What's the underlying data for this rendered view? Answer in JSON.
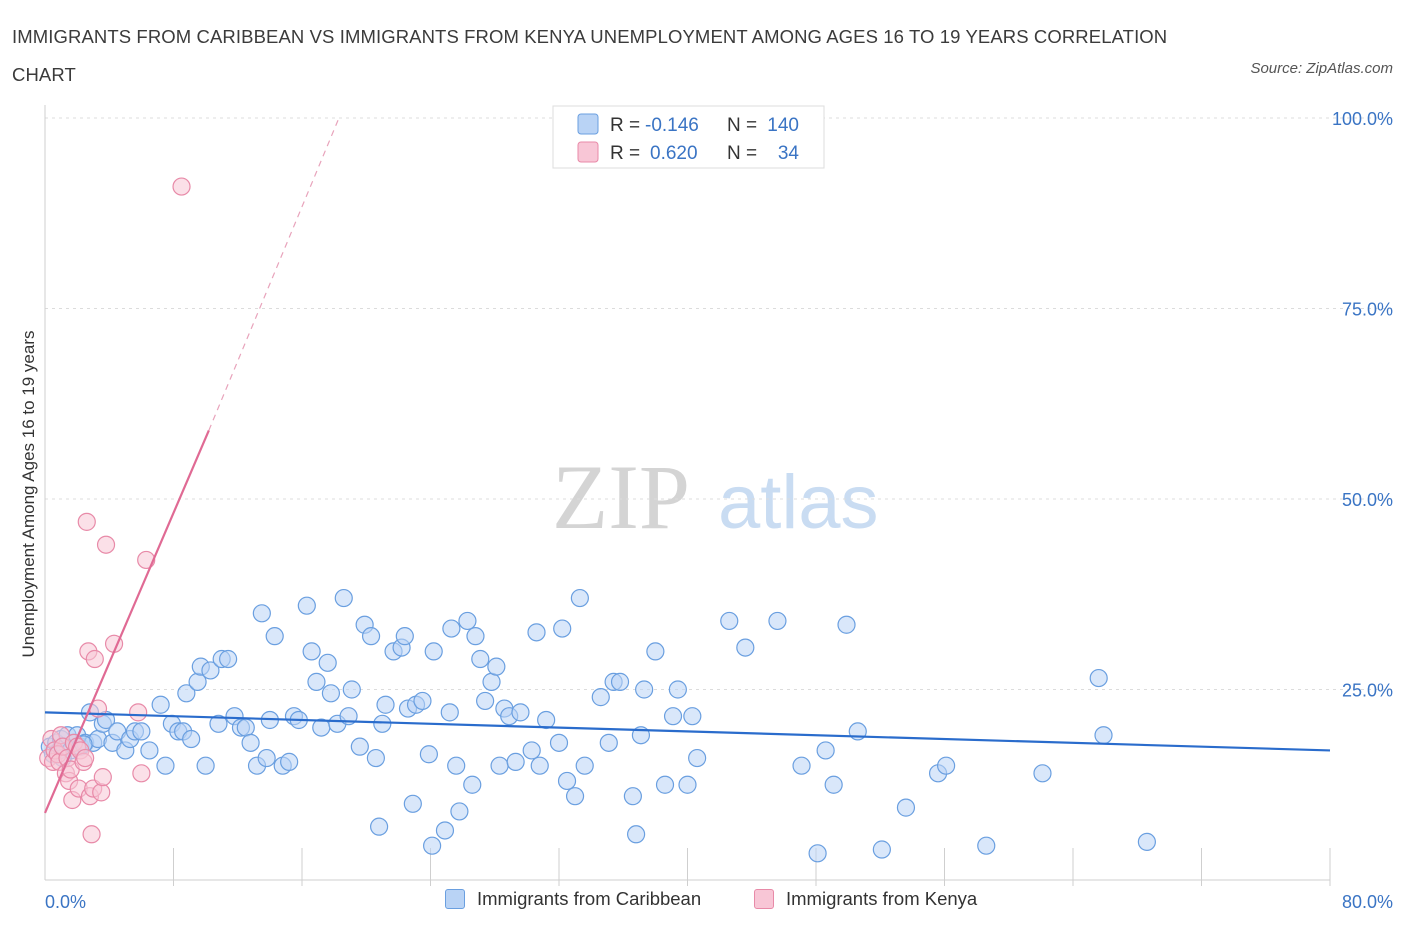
{
  "title": "IMMIGRANTS FROM CARIBBEAN VS IMMIGRANTS FROM KENYA UNEMPLOYMENT AMONG AGES 16 TO 19 YEARS CORRELATION CHART",
  "source": "Source: ZipAtlas.com",
  "watermark": {
    "zip": "ZIP",
    "atlas": "atlas"
  },
  "legend": {
    "items": [
      {
        "r_label": "R =",
        "r_value": "-0.146",
        "n_label": "N =",
        "n_value": "140",
        "fill": "#b9d3f5",
        "stroke": "#6a9fe0"
      },
      {
        "r_label": "R =",
        "r_value": "0.620",
        "n_label": "N =",
        "n_value": "34",
        "fill": "#f8c6d6",
        "stroke": "#e88aa8"
      }
    ]
  },
  "bottom_legend": {
    "caribbean": "Immigrants from Caribbean",
    "kenya": "Immigrants from Kenya"
  },
  "chart_data": {
    "type": "scatter",
    "title": "IMMIGRANTS FROM CARIBBEAN VS IMMIGRANTS FROM KENYA UNEMPLOYMENT AMONG AGES 16 TO 19 YEARS CORRELATION CHART",
    "xlabel": "",
    "ylabel": "Unemployment Among Ages 16 to 19 years",
    "xlim": [
      0,
      80
    ],
    "ylim": [
      0,
      100
    ],
    "x_tick_labels": [
      "0.0%",
      "80.0%"
    ],
    "y_ticks": [
      25,
      50,
      75,
      100
    ],
    "y_tick_labels": [
      "25.0%",
      "50.0%",
      "75.0%",
      "100.0%"
    ],
    "grid": true,
    "colors": {
      "caribbean": "#6a9fe0",
      "caribbean_fill": "#b9d3f5",
      "kenya": "#e88aa8",
      "kenya_fill": "#f8c6d6",
      "caribbean_line": "#2a6ccc",
      "kenya_line": "#e06a94"
    },
    "series": [
      {
        "name": "Immigrants from Caribbean",
        "trend": {
          "x0": 0,
          "y0": 22.0,
          "x1": 80,
          "y1": 17.0
        },
        "points": [
          [
            0.3,
            17.5
          ],
          [
            0.5,
            16.5
          ],
          [
            0.7,
            18.0
          ],
          [
            0.9,
            17.0
          ],
          [
            1.0,
            18.5
          ],
          [
            1.2,
            17.5
          ],
          [
            1.4,
            19.0
          ],
          [
            1.6,
            17.0
          ],
          [
            1.8,
            18.0
          ],
          [
            2.0,
            19.0
          ],
          [
            2.2,
            17.5
          ],
          [
            2.5,
            18.0
          ],
          [
            2.8,
            22.0
          ],
          [
            3.0,
            18.0
          ],
          [
            3.3,
            18.5
          ],
          [
            3.6,
            20.5
          ],
          [
            3.8,
            21.0
          ],
          [
            4.2,
            18.0
          ],
          [
            4.5,
            19.5
          ],
          [
            5.0,
            17.0
          ],
          [
            5.3,
            18.5
          ],
          [
            5.6,
            19.5
          ],
          [
            6.0,
            19.5
          ],
          [
            6.5,
            17.0
          ],
          [
            7.2,
            23.0
          ],
          [
            7.5,
            15.0
          ],
          [
            7.9,
            20.5
          ],
          [
            8.3,
            19.5
          ],
          [
            8.6,
            19.5
          ],
          [
            8.8,
            24.5
          ],
          [
            9.1,
            18.5
          ],
          [
            9.5,
            26.0
          ],
          [
            9.7,
            28.0
          ],
          [
            10.0,
            15.0
          ],
          [
            10.3,
            27.5
          ],
          [
            10.8,
            20.5
          ],
          [
            11.0,
            29.0
          ],
          [
            11.4,
            29.0
          ],
          [
            11.8,
            21.5
          ],
          [
            12.2,
            20.0
          ],
          [
            12.5,
            20.0
          ],
          [
            12.8,
            18.0
          ],
          [
            13.2,
            15.0
          ],
          [
            13.5,
            35.0
          ],
          [
            13.8,
            16.0
          ],
          [
            14.0,
            21.0
          ],
          [
            14.3,
            32.0
          ],
          [
            14.8,
            15.0
          ],
          [
            15.2,
            15.5
          ],
          [
            15.5,
            21.5
          ],
          [
            15.8,
            21.0
          ],
          [
            16.3,
            36.0
          ],
          [
            16.6,
            30.0
          ],
          [
            16.9,
            26.0
          ],
          [
            17.2,
            20.0
          ],
          [
            17.6,
            28.5
          ],
          [
            17.8,
            24.5
          ],
          [
            18.2,
            20.5
          ],
          [
            18.6,
            37.0
          ],
          [
            18.9,
            21.5
          ],
          [
            19.1,
            25.0
          ],
          [
            19.6,
            17.5
          ],
          [
            19.9,
            33.5
          ],
          [
            20.3,
            32.0
          ],
          [
            20.6,
            16.0
          ],
          [
            20.8,
            7.0
          ],
          [
            21.0,
            20.5
          ],
          [
            21.2,
            23.0
          ],
          [
            21.7,
            30.0
          ],
          [
            22.2,
            30.5
          ],
          [
            22.4,
            32.0
          ],
          [
            22.6,
            22.5
          ],
          [
            22.9,
            10.0
          ],
          [
            23.1,
            23.0
          ],
          [
            23.5,
            23.5
          ],
          [
            23.9,
            16.5
          ],
          [
            24.1,
            4.5
          ],
          [
            24.2,
            30.0
          ],
          [
            24.9,
            6.5
          ],
          [
            25.2,
            22.0
          ],
          [
            25.3,
            33.0
          ],
          [
            25.6,
            15.0
          ],
          [
            25.8,
            9.0
          ],
          [
            26.3,
            34.0
          ],
          [
            26.6,
            12.5
          ],
          [
            26.8,
            32.0
          ],
          [
            27.1,
            29.0
          ],
          [
            27.4,
            23.5
          ],
          [
            27.8,
            26.0
          ],
          [
            28.1,
            28.0
          ],
          [
            28.3,
            15.0
          ],
          [
            28.6,
            22.5
          ],
          [
            28.9,
            21.5
          ],
          [
            29.3,
            15.5
          ],
          [
            29.6,
            22.0
          ],
          [
            30.3,
            17.0
          ],
          [
            30.6,
            32.5
          ],
          [
            30.8,
            15.0
          ],
          [
            31.2,
            21.0
          ],
          [
            32.0,
            18.0
          ],
          [
            32.2,
            33.0
          ],
          [
            32.5,
            13.0
          ],
          [
            33.0,
            11.0
          ],
          [
            33.3,
            37.0
          ],
          [
            33.6,
            15.0
          ],
          [
            34.6,
            24.0
          ],
          [
            35.1,
            18.0
          ],
          [
            35.4,
            26.0
          ],
          [
            35.8,
            26.0
          ],
          [
            36.6,
            11.0
          ],
          [
            36.8,
            6.0
          ],
          [
            37.1,
            19.0
          ],
          [
            37.3,
            25.0
          ],
          [
            38.0,
            30.0
          ],
          [
            38.6,
            12.5
          ],
          [
            39.1,
            21.5
          ],
          [
            39.4,
            25.0
          ],
          [
            40.0,
            12.5
          ],
          [
            40.3,
            21.5
          ],
          [
            40.6,
            16.0
          ],
          [
            42.6,
            34.0
          ],
          [
            43.6,
            30.5
          ],
          [
            45.6,
            34.0
          ],
          [
            47.1,
            15.0
          ],
          [
            48.1,
            3.5
          ],
          [
            48.6,
            17.0
          ],
          [
            49.1,
            12.5
          ],
          [
            49.9,
            33.5
          ],
          [
            50.6,
            19.5
          ],
          [
            52.1,
            4.0
          ],
          [
            53.6,
            9.5
          ],
          [
            55.6,
            14.0
          ],
          [
            56.1,
            15.0
          ],
          [
            58.6,
            4.5
          ],
          [
            62.1,
            14.0
          ],
          [
            65.6,
            26.5
          ],
          [
            65.9,
            19.0
          ],
          [
            68.6,
            5.0
          ],
          [
            1.1,
            16.0
          ],
          [
            2.4,
            17.8
          ]
        ]
      },
      {
        "name": "Immigrants from Kenya",
        "trend": {
          "x0": 0,
          "y0": 8.8,
          "x1": 10.2,
          "y1": 59.0,
          "dash_x1": 18.3,
          "dash_y1": 100.0
        },
        "points": [
          [
            0.2,
            16.0
          ],
          [
            0.4,
            18.5
          ],
          [
            0.5,
            15.5
          ],
          [
            0.6,
            17.0
          ],
          [
            0.8,
            16.5
          ],
          [
            0.9,
            15.5
          ],
          [
            1.0,
            19.0
          ],
          [
            1.1,
            17.5
          ],
          [
            1.3,
            14.0
          ],
          [
            1.4,
            16.0
          ],
          [
            1.5,
            13.0
          ],
          [
            1.6,
            14.5
          ],
          [
            1.7,
            10.5
          ],
          [
            1.8,
            18.0
          ],
          [
            2.0,
            17.5
          ],
          [
            2.1,
            12.0
          ],
          [
            2.2,
            17.0
          ],
          [
            2.4,
            15.5
          ],
          [
            2.5,
            16.0
          ],
          [
            2.6,
            47.0
          ],
          [
            2.7,
            30.0
          ],
          [
            2.8,
            11.0
          ],
          [
            2.9,
            6.0
          ],
          [
            3.0,
            12.0
          ],
          [
            3.1,
            29.0
          ],
          [
            3.3,
            22.5
          ],
          [
            3.5,
            11.5
          ],
          [
            3.6,
            13.5
          ],
          [
            3.8,
            44.0
          ],
          [
            4.3,
            31.0
          ],
          [
            5.8,
            22.0
          ],
          [
            6.0,
            14.0
          ],
          [
            6.3,
            42.0
          ],
          [
            8.5,
            91.0
          ]
        ]
      }
    ]
  }
}
